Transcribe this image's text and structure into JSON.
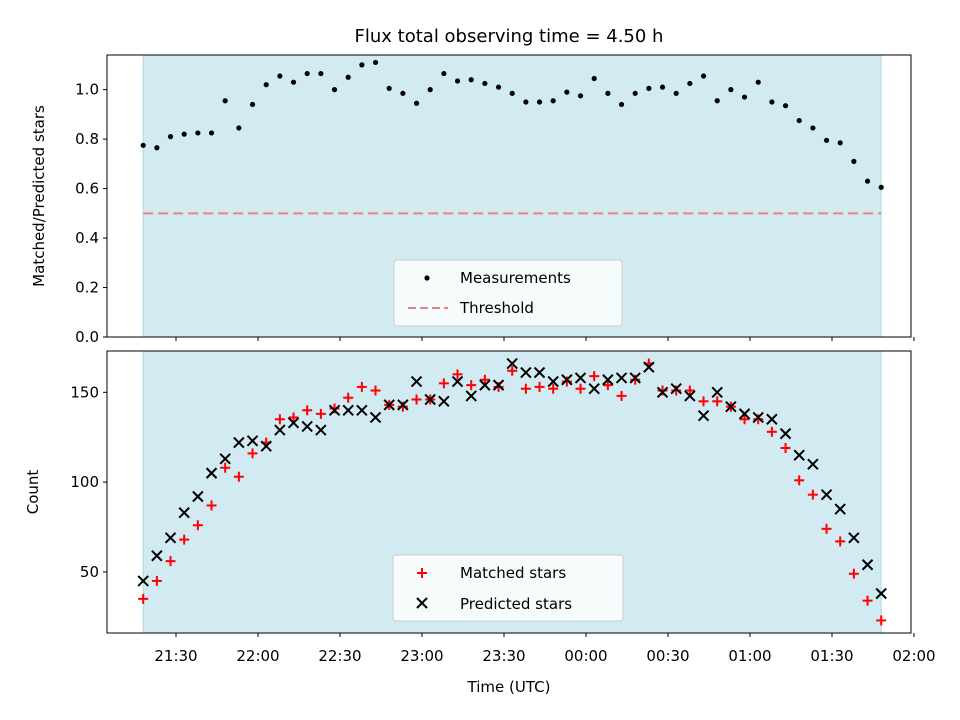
{
  "chart_data": [
    {
      "type": "scatter",
      "title": "Flux total observing time = 4.50 h",
      "ylabel": "Matched/Predicted stars",
      "xlabel": "",
      "ylim": [
        0,
        1.14
      ],
      "yticks": [
        0.0,
        0.2,
        0.4,
        0.6,
        0.8,
        1.0
      ],
      "ytick_labels": [
        "0.0",
        "0.2",
        "0.4",
        "0.6",
        "0.8",
        "1.0"
      ],
      "legend": {
        "placement": "lower center",
        "entries": [
          "Measurements",
          "Threshold"
        ]
      },
      "shaded_region": {
        "color": "#add8e6",
        "from": "21:18",
        "to": "01:48"
      },
      "threshold": {
        "value": 0.5,
        "color": "#f08080",
        "style": "dashed"
      },
      "series": [
        {
          "name": "Measurements",
          "marker": "dot",
          "color": "#000000",
          "x": [
            "21:18",
            "21:23",
            "21:28",
            "21:33",
            "21:38",
            "21:43",
            "21:48",
            "21:53",
            "21:58",
            "22:03",
            "22:08",
            "22:13",
            "22:18",
            "22:23",
            "22:28",
            "22:33",
            "22:38",
            "22:43",
            "22:48",
            "22:53",
            "22:58",
            "23:03",
            "23:08",
            "23:13",
            "23:18",
            "23:23",
            "23:28",
            "23:33",
            "23:38",
            "23:43",
            "23:48",
            "23:53",
            "23:58",
            "00:03",
            "00:08",
            "00:13",
            "00:18",
            "00:23",
            "00:28",
            "00:33",
            "00:38",
            "00:43",
            "00:48",
            "00:53",
            "00:58",
            "01:03",
            "01:08",
            "01:13",
            "01:18",
            "01:23",
            "01:28",
            "01:33",
            "01:38",
            "01:43",
            "01:48"
          ],
          "y": [
            0.775,
            0.765,
            0.81,
            0.82,
            0.825,
            0.825,
            0.955,
            0.845,
            0.94,
            1.02,
            1.055,
            1.03,
            1.065,
            1.065,
            1.0,
            1.05,
            1.1,
            1.11,
            1.005,
            0.985,
            0.945,
            1.0,
            1.065,
            1.035,
            1.04,
            1.025,
            1.01,
            0.985,
            0.95,
            0.95,
            0.955,
            0.99,
            0.975,
            1.045,
            0.985,
            0.94,
            0.985,
            1.005,
            1.01,
            0.985,
            1.025,
            1.055,
            0.955,
            1.0,
            0.97,
            1.03,
            0.95,
            0.935,
            0.875,
            0.845,
            0.795,
            0.785,
            0.71,
            0.63,
            0.605
          ]
        }
      ]
    },
    {
      "type": "scatter",
      "title": "",
      "ylabel": "Count",
      "xlabel": "Time (UTC)",
      "ylim": [
        16,
        173
      ],
      "yticks": [
        50,
        100,
        150
      ],
      "ytick_labels": [
        "50",
        "100",
        "150"
      ],
      "xticks": [
        "21:30",
        "22:00",
        "22:30",
        "23:00",
        "23:30",
        "00:00",
        "00:30",
        "01:00",
        "01:30",
        "02:00"
      ],
      "legend": {
        "placement": "lower center",
        "entries": [
          "Matched stars",
          "Predicted stars"
        ]
      },
      "shaded_region": {
        "color": "#add8e6",
        "from": "21:18",
        "to": "01:48"
      },
      "series": [
        {
          "name": "Matched stars",
          "marker": "plus",
          "color": "#ff0000",
          "x": [
            "21:18",
            "21:23",
            "21:28",
            "21:33",
            "21:38",
            "21:43",
            "21:48",
            "21:53",
            "21:58",
            "22:03",
            "22:08",
            "22:13",
            "22:18",
            "22:23",
            "22:28",
            "22:33",
            "22:38",
            "22:43",
            "22:48",
            "22:53",
            "22:58",
            "23:03",
            "23:08",
            "23:13",
            "23:18",
            "23:23",
            "23:28",
            "23:33",
            "23:38",
            "23:43",
            "23:48",
            "23:53",
            "23:58",
            "00:03",
            "00:08",
            "00:13",
            "00:18",
            "00:23",
            "00:28",
            "00:33",
            "00:38",
            "00:43",
            "00:48",
            "00:53",
            "00:58",
            "01:03",
            "01:08",
            "01:13",
            "01:18",
            "01:23",
            "01:28",
            "01:33",
            "01:38",
            "01:43",
            "01:48"
          ],
          "y": [
            35,
            45,
            56,
            68,
            76,
            87,
            108,
            103,
            116,
            122,
            135,
            136,
            140,
            138,
            141,
            147,
            153,
            151,
            143,
            142,
            146,
            146,
            155,
            160,
            154,
            157,
            153,
            162,
            152,
            153,
            152,
            156,
            152,
            159,
            154,
            148,
            157,
            166,
            151,
            151,
            151,
            145,
            145,
            142,
            135,
            135,
            128,
            119,
            101,
            93,
            74,
            67,
            49,
            34,
            23
          ]
        },
        {
          "name": "Predicted stars",
          "marker": "x",
          "color": "#000000",
          "x": [
            "21:18",
            "21:23",
            "21:28",
            "21:33",
            "21:38",
            "21:43",
            "21:48",
            "21:53",
            "21:58",
            "22:03",
            "22:08",
            "22:13",
            "22:18",
            "22:23",
            "22:28",
            "22:33",
            "22:38",
            "22:43",
            "22:48",
            "22:53",
            "22:58",
            "23:03",
            "23:08",
            "23:13",
            "23:18",
            "23:23",
            "23:28",
            "23:33",
            "23:38",
            "23:43",
            "23:48",
            "23:53",
            "23:58",
            "00:03",
            "00:08",
            "00:13",
            "00:18",
            "00:23",
            "00:28",
            "00:33",
            "00:38",
            "00:43",
            "00:48",
            "00:53",
            "00:58",
            "01:03",
            "01:08",
            "01:13",
            "01:18",
            "01:23",
            "01:28",
            "01:33",
            "01:38",
            "01:43",
            "01:48"
          ],
          "y": [
            45,
            59,
            69,
            83,
            92,
            105,
            113,
            122,
            123,
            120,
            129,
            133,
            131,
            129,
            140,
            140,
            140,
            136,
            143,
            143,
            156,
            146,
            145,
            156,
            148,
            154,
            154,
            166,
            161,
            161,
            156,
            157,
            158,
            152,
            157,
            158,
            158,
            164,
            150,
            152,
            148,
            137,
            150,
            142,
            138,
            136,
            135,
            127,
            115,
            110,
            93,
            85,
            69,
            54,
            38
          ]
        }
      ]
    }
  ]
}
